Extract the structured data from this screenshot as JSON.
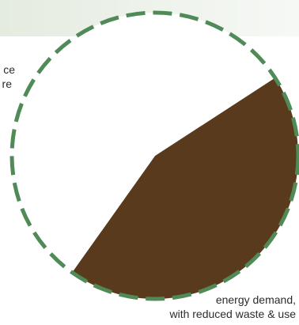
{
  "chart_data": {
    "type": "pie",
    "categories": [
      "energy demand, with reduced waste & use",
      ""
    ],
    "values": [
      44,
      56
    ],
    "colors": [
      "#5a3a1c",
      "#ffffff"
    ],
    "outline_color": "#4f8a57",
    "outline_style": "dashed",
    "labels_visible": {
      "left_fragment_1": "ce",
      "left_fragment_2": "re",
      "bottom_line_1": "energy demand,",
      "bottom_line_2": "with reduced waste & use"
    }
  }
}
